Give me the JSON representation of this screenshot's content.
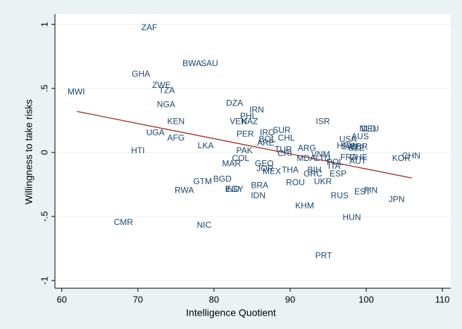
{
  "chart_data": {
    "type": "scatter",
    "xlabel": "Intelligence Quotient",
    "ylabel": "Willingness to take risks",
    "xlim": [
      59.1,
      111.1
    ],
    "ylim": [
      -1.06,
      1.08
    ],
    "xticks": [
      60,
      70,
      80,
      90,
      100,
      110
    ],
    "yticks": [
      -1,
      {
        "value": -0.5,
        "label": "-.5"
      },
      0,
      {
        "value": 0.5,
        "label": ".5"
      },
      1
    ],
    "grid": true,
    "label_color": "#1a476f",
    "labels": [
      "ZAF",
      "BWA",
      "SAU",
      "GHA",
      "ZWE",
      "TZA",
      "MWI",
      "NGA",
      "DZA",
      "IRN",
      "PHL",
      "VEN",
      "KAZ",
      "KEN",
      "ISR",
      "SUR",
      "PER",
      "IRQ",
      "UGA",
      "CHL",
      "AFG",
      "NLD",
      "DEU",
      "AUS",
      "USA",
      "BOL",
      "ARE",
      "LKA",
      "HRV",
      "SWE",
      "CZE",
      "GBR",
      "ARG",
      "HTI",
      "PAK",
      "TUR",
      "CRI",
      "VNM",
      "CHN",
      "KOR",
      "FRA",
      "CHE",
      "AUT",
      "MDA",
      "LTU",
      "POL",
      "ITA",
      "COL",
      "MAR",
      "GEO",
      "JOR",
      "MEX",
      "THA",
      "BIH",
      "GRC",
      "ESP",
      "BGD",
      "GTM",
      "ROU",
      "UKR",
      "BRA",
      "IND",
      "EGY",
      "RWA",
      "EST",
      "FIN",
      "RUS",
      "IDN",
      "JPN",
      "KHM",
      "HUN",
      "CMR",
      "NIC",
      "PRT"
    ],
    "x": [
      71.5,
      77.1,
      79.4,
      70.4,
      73.1,
      73.8,
      61.9,
      73.7,
      82.7,
      85.6,
      84.5,
      83.2,
      84.7,
      75.0,
      94.3,
      88.9,
      84.1,
      87.0,
      72.3,
      89.5,
      75.0,
      100.2,
      100.5,
      99.2,
      97.6,
      87.0,
      86.8,
      78.9,
      97.3,
      98.0,
      98.7,
      99.0,
      92.2,
      70.0,
      84.0,
      89.1,
      89.3,
      94.0,
      105.9,
      104.6,
      97.7,
      99.0,
      98.9,
      92.1,
      94.3,
      95.9,
      95.8,
      83.5,
      82.3,
      86.6,
      86.7,
      87.6,
      90.0,
      93.2,
      93.0,
      96.3,
      81.1,
      78.5,
      90.7,
      94.3,
      86.0,
      82.4,
      82.7,
      76.1,
      99.5,
      100.6,
      96.5,
      85.8,
      104.0,
      91.9,
      98.1,
      68.1,
      78.7,
      94.4
    ],
    "y": [
      0.97,
      0.69,
      0.69,
      0.61,
      0.52,
      0.48,
      0.47,
      0.37,
      0.38,
      0.33,
      0.28,
      0.24,
      0.24,
      0.24,
      0.24,
      0.17,
      0.14,
      0.15,
      0.15,
      0.11,
      0.11,
      0.18,
      0.18,
      0.12,
      0.1,
      0.1,
      0.07,
      0.05,
      0.05,
      0.04,
      0.03,
      0.04,
      0.03,
      0.01,
      0.01,
      0.02,
      -0.01,
      -0.02,
      -0.03,
      -0.05,
      -0.04,
      -0.04,
      -0.07,
      -0.05,
      -0.05,
      -0.08,
      -0.11,
      -0.05,
      -0.09,
      -0.09,
      -0.13,
      -0.15,
      -0.14,
      -0.14,
      -0.17,
      -0.17,
      -0.21,
      -0.23,
      -0.24,
      -0.23,
      -0.26,
      -0.29,
      -0.29,
      -0.3,
      -0.31,
      -0.3,
      -0.34,
      -0.34,
      -0.37,
      -0.42,
      -0.51,
      -0.55,
      -0.57,
      -0.81
    ],
    "fit_line": {
      "color": "#9e2a1e",
      "x": [
        62,
        106
      ],
      "y": [
        0.32,
        -0.2
      ]
    }
  }
}
